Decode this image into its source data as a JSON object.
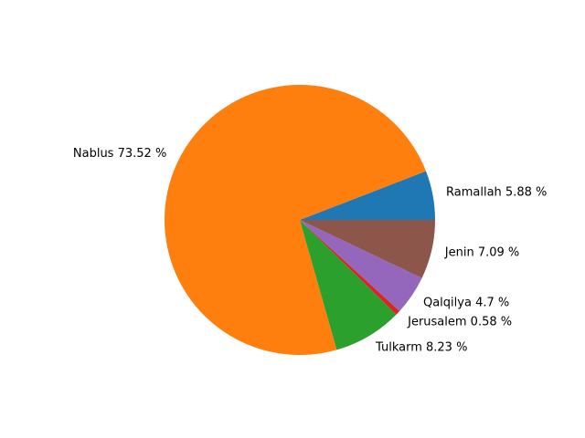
{
  "chart_data": {
    "type": "pie",
    "title": "",
    "start_angle_deg": 0,
    "direction": "counterclockwise",
    "legend": "none",
    "slices": [
      {
        "name": "Ramallah",
        "value": 5.88,
        "label": "Ramallah 5.88 %",
        "color": "#1f77b4"
      },
      {
        "name": "Nablus",
        "value": 73.52,
        "label": "Nablus 73.52 %",
        "color": "#ff7f0e"
      },
      {
        "name": "Tulkarm",
        "value": 8.23,
        "label": "Tulkarm 8.23 %",
        "color": "#2ca02c"
      },
      {
        "name": "Jerusalem",
        "value": 0.58,
        "label": "Jerusalem 0.58 %",
        "color": "#d62728"
      },
      {
        "name": "Qalqilya",
        "value": 4.7,
        "label": "Qalqilya 4.7 %",
        "color": "#9467bd"
      },
      {
        "name": "Jenin",
        "value": 7.09,
        "label": "Jenin 7.09 %",
        "color": "#8c564b"
      }
    ]
  }
}
